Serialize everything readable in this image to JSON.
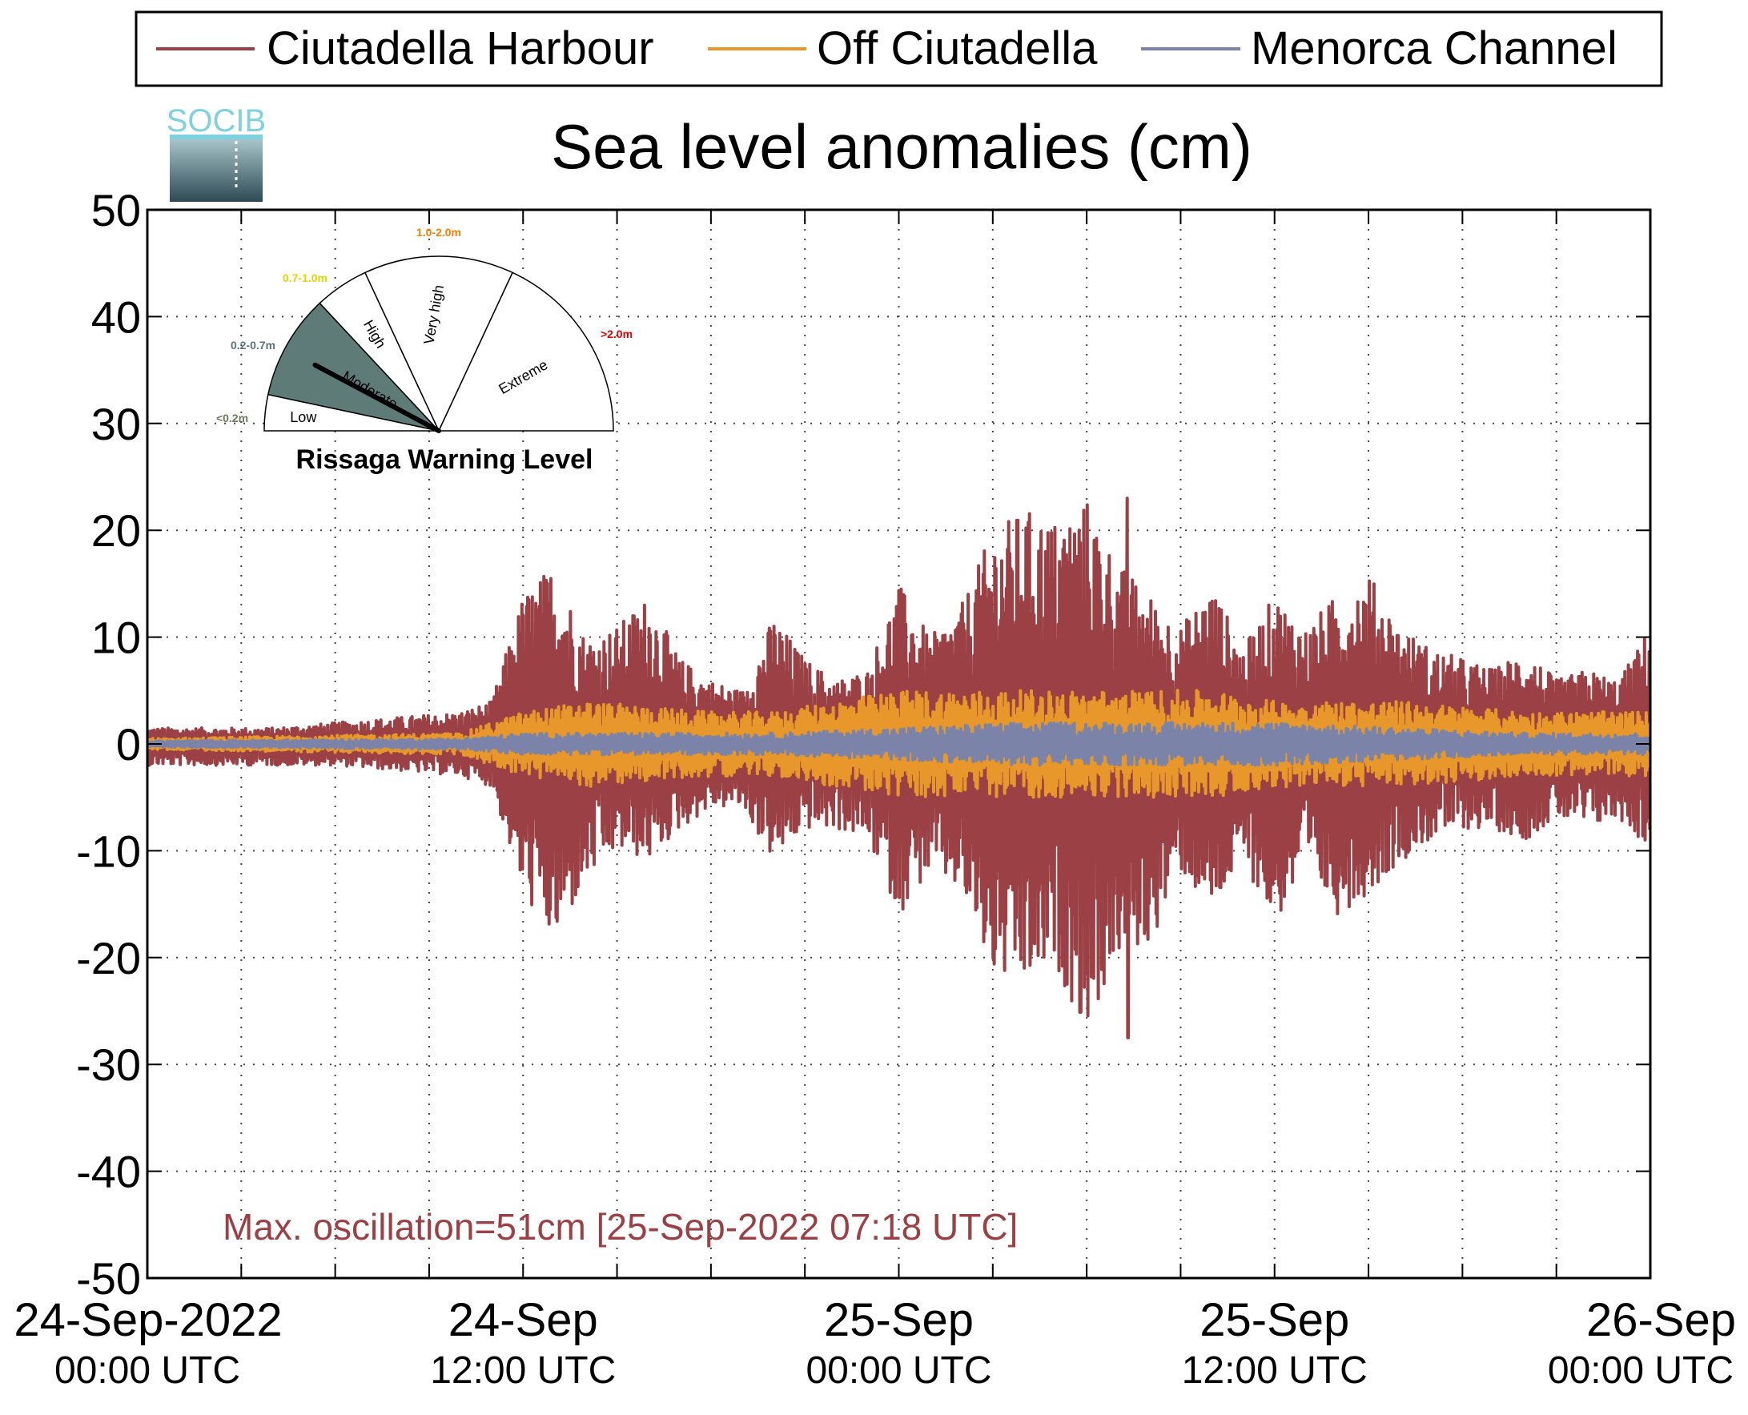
{
  "chart_data": {
    "type": "line",
    "title": "Sea level anomalies (cm)",
    "xlabel": "",
    "ylabel": "",
    "ylim": [
      -50,
      50
    ],
    "yticks": [
      50,
      40,
      30,
      20,
      10,
      0,
      -10,
      -20,
      -30,
      -40,
      -50
    ],
    "yticks_labels": [
      "50",
      "40",
      "30",
      "20",
      "10",
      "0",
      "-10",
      "-20",
      "-30",
      "-40",
      "-50"
    ],
    "xlim_hours": [
      0,
      48
    ],
    "x_unit": "hours since 24-Sep-2022 00:00 UTC",
    "xticks": [
      {
        "hour": 0,
        "line1": "24-Sep-2022",
        "line2": "00:00 UTC"
      },
      {
        "hour": 12,
        "line1": "24-Sep",
        "line2": "12:00 UTC"
      },
      {
        "hour": 24,
        "line1": "25-Sep",
        "line2": "00:00 UTC"
      },
      {
        "hour": 36,
        "line1": "25-Sep",
        "line2": "12:00 UTC"
      },
      {
        "hour": 48,
        "line1": "26-Sep",
        "line2": "00:00 UTC"
      }
    ],
    "minor_xticks_hours": [
      3,
      6,
      9,
      15,
      18,
      21,
      27,
      30,
      33,
      39,
      42,
      45
    ],
    "grid": true,
    "legend_position": "top",
    "series": [
      {
        "name": "Ciutadella Harbour",
        "color": "#9b4145",
        "envelope": {
          "hours": [
            0,
            2,
            4,
            6,
            8,
            10,
            11,
            12,
            13,
            14,
            15,
            16,
            17,
            18,
            19,
            20,
            21,
            22,
            23,
            24,
            25,
            26,
            27,
            28,
            29,
            30,
            31,
            32,
            33,
            34,
            35,
            36,
            37,
            38,
            39,
            40,
            41,
            42,
            43,
            44,
            45,
            46,
            47,
            48
          ],
          "max_cm": [
            1.5,
            1.5,
            1.5,
            2,
            2.5,
            3,
            4,
            14,
            17,
            10,
            11,
            14,
            8,
            6,
            5,
            12,
            8,
            6,
            7,
            15,
            10,
            13,
            20,
            22,
            21,
            23,
            17,
            14,
            11,
            15,
            9,
            14,
            11,
            14,
            16,
            11,
            9,
            8,
            7,
            9,
            6,
            7,
            6,
            11
          ],
          "min_cm": [
            -2,
            -2,
            -2,
            -2,
            -2.5,
            -3,
            -4,
            -14,
            -19,
            -13,
            -10,
            -11,
            -8,
            -6,
            -6,
            -11,
            -8,
            -8,
            -9,
            -16,
            -12,
            -14,
            -22,
            -23,
            -21,
            -27,
            -20,
            -19,
            -12,
            -16,
            -11,
            -17,
            -12,
            -16,
            -14,
            -11,
            -9,
            -8,
            -8,
            -9,
            -7,
            -8,
            -7,
            -10
          ]
        },
        "peak_max": {
          "hour": 31.3,
          "value": 23
        },
        "peak_min": {
          "hour": 31.3,
          "value": -27.5
        }
      },
      {
        "name": "Off Ciutadella",
        "color": "#e8972a",
        "envelope": {
          "hours": [
            0,
            10,
            12,
            14,
            18,
            20,
            22,
            24,
            26,
            28,
            30,
            32,
            34,
            36,
            38,
            40,
            44,
            46,
            48
          ],
          "max_cm": [
            0.5,
            1,
            3,
            4,
            3,
            3,
            4,
            5,
            5,
            5,
            5,
            5,
            5,
            4,
            4,
            4,
            3,
            3,
            3
          ],
          "min_cm": [
            -0.5,
            -1,
            -3,
            -4,
            -3,
            -3,
            -4,
            -5,
            -5,
            -5,
            -5,
            -5,
            -5,
            -4,
            -4,
            -4,
            -3,
            -3,
            -3
          ]
        }
      },
      {
        "name": "Menorca Channel",
        "color": "#7b84a8",
        "envelope": {
          "hours": [
            0,
            10,
            12,
            20,
            24,
            28,
            32,
            36,
            40,
            44,
            48
          ],
          "max_cm": [
            0.3,
            0.5,
            1,
            1,
            1.5,
            2,
            2,
            2,
            1.5,
            1,
            1
          ],
          "min_cm": [
            -0.3,
            -0.5,
            -1,
            -1,
            -1.5,
            -2,
            -2,
            -2,
            -1.5,
            -1,
            -1
          ]
        }
      }
    ],
    "annotation": "Max. oscillation=51cm [25-Sep-2022 07:18 UTC]",
    "annotation_color": "#9b4145"
  },
  "logo": {
    "text": "SOCIB"
  },
  "gauge": {
    "title": "Rissaga Warning Level",
    "needle_level": "Moderate",
    "sectors": [
      {
        "label": "Low",
        "range_label": "<0.2m",
        "range_color": "#6b7a5a",
        "fill": "#ffffff"
      },
      {
        "label": "Moderate",
        "range_label": "0.2-0.7m",
        "range_color": "#5b7475",
        "fill": "#5f7b78"
      },
      {
        "label": "High",
        "range_label": "0.7-1.0m",
        "range_color": "#e6d200",
        "fill": "#ffffff"
      },
      {
        "label": "Very high",
        "range_label": "1.0-2.0m",
        "range_color": "#ff7f00",
        "fill": "#ffffff"
      },
      {
        "label": "Extreme",
        "range_label": ">2.0m",
        "range_color": "#e00000",
        "fill": "#ffffff"
      }
    ]
  }
}
